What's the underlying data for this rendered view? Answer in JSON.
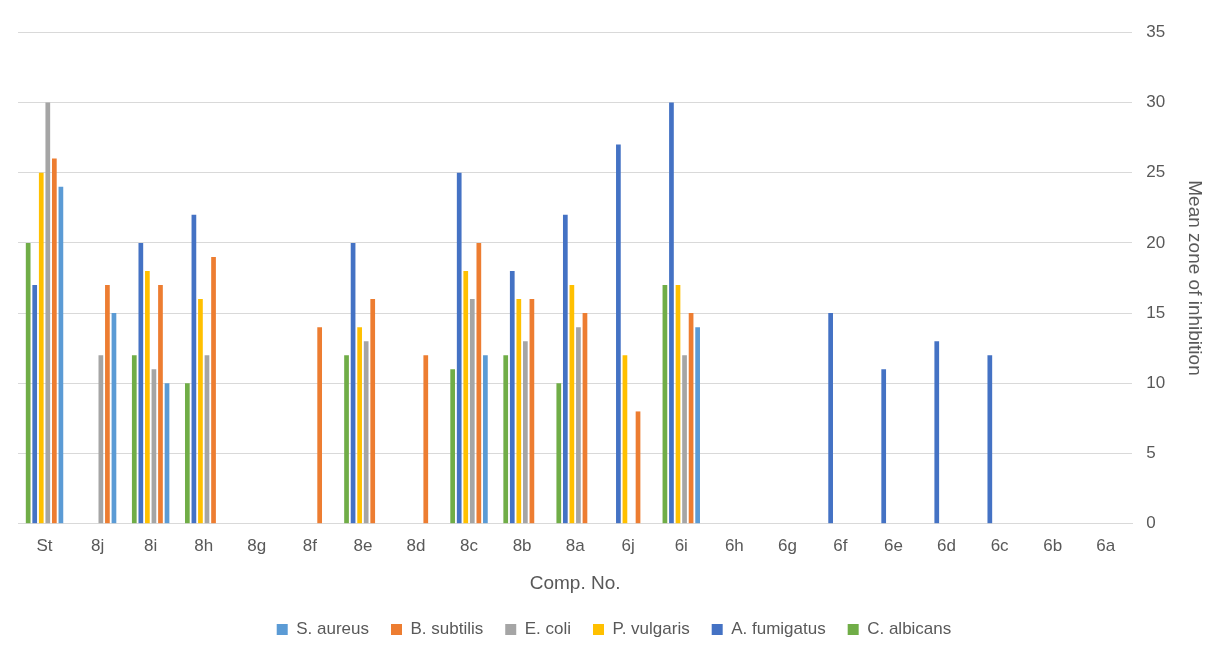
{
  "chart_data": {
    "type": "bar",
    "xlabel": "Comp. No.",
    "ylabel": "Mean zone of inhibition",
    "categories": [
      "St",
      "8j",
      "8i",
      "8h",
      "8g",
      "8f",
      "8e",
      "8d",
      "8c",
      "8b",
      "8a",
      "6j",
      "6i",
      "6h",
      "6g",
      "6f",
      "6e",
      "6d",
      "6c",
      "6b",
      "6a"
    ],
    "series": [
      {
        "name": "S. aureus",
        "color": "#5b9bd5",
        "values": [
          24,
          15,
          10,
          null,
          null,
          null,
          null,
          null,
          12,
          null,
          null,
          null,
          14,
          null,
          null,
          null,
          null,
          null,
          null,
          null,
          null
        ]
      },
      {
        "name": "B. subtilis",
        "color": "#ed7d31",
        "values": [
          26,
          17,
          17,
          19,
          null,
          14,
          16,
          12,
          20,
          16,
          15,
          8,
          15,
          null,
          null,
          null,
          null,
          null,
          null,
          null,
          null
        ]
      },
      {
        "name": "E. coli",
        "color": "#a5a5a5",
        "values": [
          30,
          12,
          11,
          12,
          null,
          null,
          13,
          null,
          16,
          13,
          14,
          null,
          12,
          null,
          null,
          null,
          null,
          null,
          null,
          null,
          null
        ]
      },
      {
        "name": "P. vulgaris",
        "color": "#ffc000",
        "values": [
          25,
          null,
          18,
          16,
          null,
          null,
          14,
          null,
          18,
          16,
          17,
          12,
          17,
          null,
          null,
          null,
          null,
          null,
          null,
          null,
          null
        ]
      },
      {
        "name": "A. fumigatus",
        "color": "#4472c4",
        "values": [
          17,
          null,
          20,
          22,
          null,
          null,
          20,
          null,
          25,
          18,
          22,
          27,
          30,
          null,
          null,
          15,
          11,
          13,
          12,
          null,
          null
        ]
      },
      {
        "name": "C. albicans",
        "color": "#70ad47",
        "values": [
          20,
          null,
          12,
          10,
          null,
          null,
          12,
          null,
          11,
          12,
          10,
          null,
          17,
          null,
          null,
          null,
          null,
          null,
          null,
          null,
          null
        ]
      }
    ],
    "ylim": [
      0,
      35
    ],
    "yticks": [
      0,
      5,
      10,
      15,
      20,
      25,
      30,
      35
    ],
    "grid": "y",
    "legend": "bottom"
  }
}
